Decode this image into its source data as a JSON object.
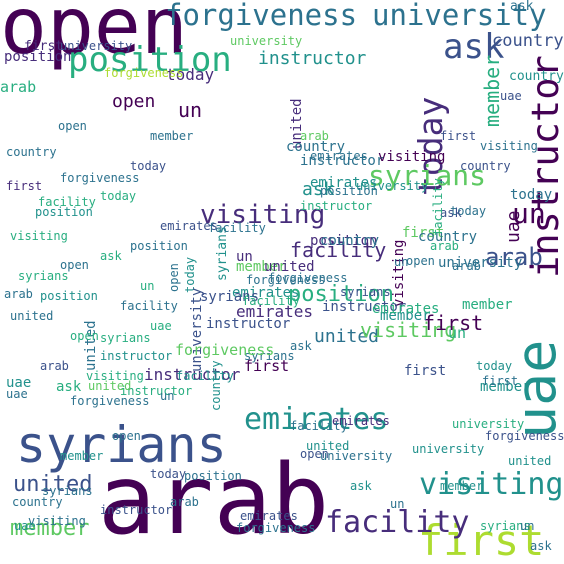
{
  "colors": {
    "background": "#ffffff",
    "palette": [
      "#440154",
      "#472d7b",
      "#3b528b",
      "#2c728e",
      "#21918c",
      "#28ae80",
      "#5ec962",
      "#addc30",
      "#d4e21a",
      "#fde725"
    ]
  },
  "words": [
    "open",
    "forgiveness",
    "university",
    "position",
    "ask",
    "country",
    "instructor",
    "today",
    "un",
    "first",
    "arab",
    "syrians",
    "uae",
    "visiting",
    "facility",
    "member",
    "emirates",
    "united",
    "position",
    "today",
    "ask",
    "un",
    "open",
    "first",
    "instructor",
    "member",
    "syrians",
    "visiting",
    "facility",
    "country",
    "forgiveness",
    "university",
    "united",
    "emirates",
    "position",
    "ask",
    "arab",
    "open",
    "syrians",
    "instructor",
    "university",
    "facility",
    "country",
    "first",
    "today",
    "visiting",
    "member",
    "arab",
    "uae",
    "open",
    "united",
    "emirates",
    "syrians",
    "instructor",
    "forgiveness",
    "un",
    "position",
    "facility",
    "united",
    "visiting",
    "forgiveness",
    "today",
    "country",
    "syrians",
    "ask",
    "first",
    "arab",
    "un",
    "member",
    "instructor",
    "emirates",
    "university",
    "forgiveness",
    "instructor",
    "position",
    "open",
    "today",
    "member",
    "emirates",
    "visiting",
    "united",
    "ask",
    "country",
    "syrians",
    "first",
    "facility",
    "university",
    "arab",
    "uae",
    "un",
    "syrians",
    "arab",
    "position",
    "visiting",
    "today",
    "instructor",
    "country",
    "facility",
    "forgiveness",
    "member",
    "first",
    "open",
    "uae",
    "united",
    "university",
    "emirates",
    "ask",
    "un",
    "first",
    "member",
    "facility",
    "today",
    "country",
    "syrians",
    "visiting",
    "open",
    "position",
    "united",
    "arab",
    "forgiveness",
    "emirates",
    "instructor",
    "ask",
    "university",
    "uae",
    "un",
    "open",
    "today",
    "emirates",
    "arab",
    "position",
    "first",
    "country",
    "visiting",
    "instructor",
    "university",
    "member",
    "syrians",
    "facility",
    "united",
    "forgiveness",
    "ask",
    "uae",
    "un",
    "country",
    "visiting",
    "forgiveness",
    "today",
    "member",
    "first",
    "university",
    "arab",
    "position",
    "ask",
    "emirates",
    "facility",
    "syrians",
    "open",
    "united",
    "instructor",
    "uae",
    "un"
  ]
}
